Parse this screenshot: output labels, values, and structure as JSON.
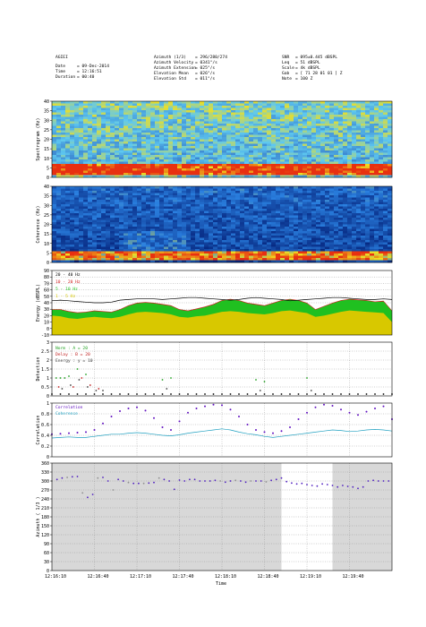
{
  "header": {
    "station": "AGIEI",
    "left": [
      {
        "label": "Date",
        "value": "= 09-Dec-2014"
      },
      {
        "label": "Time",
        "value": "= 12:16:51"
      },
      {
        "label": "Duration",
        "value": "= 00:40"
      }
    ],
    "center": [
      {
        "label": "Azimuth (1/3)",
        "value": "= 296/280/274"
      },
      {
        "label": "Azimuth Velocity",
        "value": "= 0341°/s"
      },
      {
        "label": "Azimuth Extension",
        "value": "= 025°/s"
      },
      {
        "label": "Elevation Mean",
        "value": "= 026°/s"
      },
      {
        "label": "Elevation Std",
        "value": "= 011°/s"
      }
    ],
    "right": [
      {
        "label": "SNR",
        "value": "= 095±0.445 dBSPL"
      },
      {
        "label": "Leq",
        "value": "= 51 dBSPL"
      },
      {
        "label": "Scale",
        "value": "= 4k dBSPL"
      },
      {
        "label": "Gab",
        "value": "= [ 71 28 01 01 ] Z"
      },
      {
        "label": "Note",
        "value": "= 100 Z"
      }
    ]
  },
  "chart_data": [
    {
      "type": "heatmap",
      "panel": "spectrogram",
      "ylabel": "Spectrogram (Hz)",
      "ylim": [
        0,
        40
      ],
      "yticks": [
        "0",
        "5",
        "10",
        "15",
        "20",
        "25",
        "30",
        "35",
        "40"
      ],
      "colors": {
        "low": "#1030a8",
        "mid": "#5ec8f0",
        "high": "#e83010"
      }
    },
    {
      "type": "heatmap",
      "panel": "coherence",
      "ylabel": "Coherence (Hz)",
      "ylim": [
        0,
        40
      ],
      "yticks": [
        "0",
        "5",
        "10",
        "15",
        "20",
        "25",
        "30",
        "35",
        "40"
      ],
      "colors": {
        "low": "#001870",
        "mid": "#2a80e0",
        "high": "#e83010"
      }
    },
    {
      "type": "area",
      "panel": "energy",
      "ylabel": "Energy (dBSPL)",
      "ylim": [
        -10,
        90
      ],
      "yticks": [
        "-10",
        "0",
        "10",
        "20",
        "30",
        "40",
        "50",
        "60",
        "70",
        "80",
        "90"
      ],
      "legend": [
        "20 - 40 Hz",
        "10 - 20 Hz",
        "5 - 10 Hz",
        "1 - 5 Hz"
      ],
      "legend_colors": [
        "#000000",
        "#d02020",
        "#20c020",
        "#d8c800"
      ],
      "x": [
        0,
        1,
        2,
        3,
        4,
        5,
        6,
        7,
        8,
        9,
        10,
        11,
        12,
        13,
        14,
        15,
        16,
        17,
        18,
        19,
        20,
        21,
        22,
        23,
        24,
        25,
        26,
        27,
        28,
        29,
        30,
        31,
        32,
        33,
        34,
        35,
        36,
        37,
        38,
        39,
        40
      ],
      "series": [
        {
          "name": "20 - 40 Hz",
          "values": [
            43,
            44,
            43,
            42,
            41,
            40,
            40,
            41,
            44,
            45,
            46,
            46,
            46,
            45,
            46,
            47,
            48,
            48,
            47,
            46,
            45,
            44,
            45,
            47,
            48,
            47,
            46,
            45,
            43,
            44,
            45,
            46,
            47,
            48,
            48,
            47,
            46,
            45,
            45,
            46,
            45
          ]
        },
        {
          "name": "10 - 20 Hz",
          "values": [
            30,
            30,
            27,
            25,
            26,
            28,
            27,
            26,
            30,
            36,
            40,
            41,
            40,
            38,
            36,
            30,
            28,
            31,
            34,
            38,
            44,
            46,
            44,
            40,
            38,
            36,
            40,
            44,
            46,
            44,
            40,
            30,
            35,
            40,
            44,
            46,
            45,
            44,
            42,
            43,
            28
          ]
        },
        {
          "name": "5 - 10 Hz",
          "values": [
            29,
            29,
            26,
            24,
            25,
            27,
            26,
            25,
            29,
            35,
            39,
            40,
            39,
            37,
            35,
            29,
            27,
            30,
            33,
            37,
            43,
            45,
            43,
            39,
            37,
            35,
            39,
            43,
            45,
            43,
            39,
            29,
            34,
            39,
            43,
            45,
            44,
            43,
            41,
            42,
            27
          ]
        },
        {
          "name": "1 - 5 Hz",
          "values": [
            20,
            19,
            16,
            15,
            17,
            18,
            17,
            16,
            18,
            22,
            25,
            26,
            25,
            24,
            22,
            18,
            17,
            19,
            20,
            23,
            26,
            27,
            26,
            24,
            23,
            22,
            24,
            27,
            28,
            26,
            24,
            18,
            20,
            23,
            26,
            28,
            27,
            26,
            25,
            24,
            10
          ]
        }
      ]
    },
    {
      "type": "scatter",
      "panel": "detection",
      "ylabel": "Detection",
      "ylim": [
        0,
        3
      ],
      "yticks": [
        "0",
        "0.5",
        "1",
        "1.5",
        "2",
        "2.5",
        "3"
      ],
      "legend": [
        "Norm    : A = 20",
        "Delay : B = 20",
        "Energy : y = 10"
      ],
      "legend_colors": [
        "#20a020",
        "#c02020",
        "#404040"
      ],
      "series": [
        {
          "name": "Norm    : A = 20",
          "x": [
            0.5,
            1,
            1.5,
            2,
            3,
            4,
            13,
            14,
            24,
            25,
            30
          ],
          "values": [
            1,
            1,
            1,
            1.1,
            1.5,
            1.2,
            0.9,
            1,
            0.9,
            0.8,
            1
          ]
        },
        {
          "name": "Delay : B = 20",
          "x": [
            0.8,
            2.5,
            3.5,
            4.5,
            5.5
          ],
          "values": [
            0.5,
            0.5,
            1,
            0.6,
            0.4
          ]
        },
        {
          "name": "Energy : y = 10",
          "x": [
            1.2,
            2.2,
            3.2,
            4.2,
            5.2,
            6,
            13.5,
            24.5,
            30.5
          ],
          "values": [
            0.4,
            0.6,
            0.9,
            0.5,
            0.3,
            0.3,
            0.4,
            0.3,
            0.3
          ]
        },
        {
          "name": "baseline",
          "x": [
            0,
            1,
            2,
            3,
            4,
            5,
            6,
            7,
            8,
            9,
            10,
            11,
            12,
            13,
            14,
            15,
            16,
            17,
            18,
            19,
            20,
            21,
            22,
            23,
            24,
            25,
            26,
            27,
            28,
            29,
            30,
            31,
            32,
            33,
            34,
            35,
            36,
            37,
            38,
            39,
            40
          ],
          "values": [
            0.1,
            0.1,
            0.1,
            0.1,
            0.1,
            0.1,
            0.1,
            0.1,
            0.1,
            0.1,
            0.1,
            0.1,
            0.1,
            0.1,
            0.1,
            0.1,
            0.1,
            0.1,
            0.1,
            0.1,
            0.1,
            0.1,
            0.1,
            0.1,
            0.1,
            0.1,
            0.1,
            0.1,
            0.1,
            0.1,
            0.1,
            0.1,
            0.1,
            0.1,
            0.1,
            0.1,
            0.1,
            0.1,
            0.1,
            0.1,
            0.1
          ]
        }
      ]
    },
    {
      "type": "line",
      "panel": "correlation",
      "ylabel": "Correlation",
      "ylim": [
        0,
        1
      ],
      "yticks": [
        "0",
        "0.2",
        "0.4",
        "0.6",
        "0.8",
        "1"
      ],
      "legend": [
        "Correlation",
        "Coherence"
      ],
      "legend_colors": [
        "#6010c0",
        "#20a0c0"
      ],
      "x": [
        0,
        1,
        2,
        3,
        4,
        5,
        6,
        7,
        8,
        9,
        10,
        11,
        12,
        13,
        14,
        15,
        16,
        17,
        18,
        19,
        20,
        21,
        22,
        23,
        24,
        25,
        26,
        27,
        28,
        29,
        30,
        31,
        32,
        33,
        34,
        35,
        36,
        37,
        38,
        39,
        40
      ],
      "series": [
        {
          "name": "Correlation",
          "values": [
            0.42,
            0.43,
            0.44,
            0.45,
            0.46,
            0.5,
            0.62,
            0.75,
            0.85,
            0.9,
            0.92,
            0.86,
            0.72,
            0.55,
            0.5,
            0.66,
            0.82,
            0.9,
            0.94,
            0.97,
            0.96,
            0.88,
            0.75,
            0.6,
            0.5,
            0.46,
            0.44,
            0.48,
            0.55,
            0.7,
            0.82,
            0.92,
            0.97,
            0.95,
            0.88,
            0.82,
            0.78,
            0.84,
            0.9,
            0.94,
            0.7
          ]
        },
        {
          "name": "Coherence",
          "values": [
            0.35,
            0.36,
            0.37,
            0.36,
            0.36,
            0.38,
            0.4,
            0.42,
            0.42,
            0.44,
            0.45,
            0.44,
            0.42,
            0.4,
            0.39,
            0.41,
            0.44,
            0.46,
            0.48,
            0.5,
            0.52,
            0.5,
            0.46,
            0.43,
            0.41,
            0.38,
            0.36,
            0.38,
            0.4,
            0.42,
            0.44,
            0.46,
            0.48,
            0.5,
            0.49,
            0.47,
            0.48,
            0.5,
            0.51,
            0.5,
            0.48
          ]
        }
      ]
    },
    {
      "type": "scatter",
      "panel": "azimuth",
      "ylabel": "Azimuth ( 1/3 )",
      "xlabel": "Time",
      "ylim": [
        0,
        360
      ],
      "yticks": [
        "0",
        "30",
        "60",
        "90",
        "120",
        "150",
        "180",
        "210",
        "240",
        "270",
        "300",
        "330",
        "360"
      ],
      "xticks": [
        "12:16:10",
        "12:16:40",
        "12:17:10",
        "12:17:40",
        "12:18:10",
        "12:18:40",
        "12:19:10",
        "12:19:40"
      ],
      "shaded_intervals": [
        [
          0,
          27
        ],
        [
          33,
          40
        ]
      ],
      "shade_color": "#d8d8d8",
      "x": [
        0,
        0.6,
        1.2,
        1.8,
        2.4,
        3,
        3.6,
        4.2,
        4.8,
        5.4,
        6,
        6.6,
        7.2,
        7.8,
        8.4,
        9,
        9.6,
        10.2,
        10.8,
        11.4,
        12,
        12.6,
        13.2,
        13.8,
        14.4,
        15,
        15.6,
        16.2,
        16.8,
        17.4,
        18,
        18.6,
        19.2,
        19.8,
        20.4,
        21,
        21.6,
        22.2,
        22.8,
        23.4,
        24,
        24.6,
        25.2,
        25.8,
        26.4,
        27,
        27.6,
        28.2,
        28.8,
        29.4,
        30,
        30.6,
        31.2,
        31.8,
        32.4,
        33,
        33.6,
        34.2,
        34.8,
        35.4,
        36,
        36.6,
        37.2,
        37.8,
        38.4,
        39,
        39.6
      ],
      "values": [
        300,
        305,
        310,
        312,
        314,
        315,
        260,
        245,
        255,
        310,
        312,
        300,
        270,
        305,
        300,
        295,
        292,
        292,
        292,
        293,
        295,
        310,
        305,
        300,
        272,
        303,
        300,
        305,
        305,
        300,
        300,
        300,
        302,
        300,
        296,
        300,
        302,
        300,
        296,
        300,
        300,
        300,
        297,
        302,
        305,
        310,
        298,
        293,
        290,
        292,
        288,
        285,
        283,
        290,
        288,
        285,
        280,
        285,
        282,
        280,
        275,
        280,
        300,
        302,
        300,
        300,
        300
      ]
    }
  ]
}
